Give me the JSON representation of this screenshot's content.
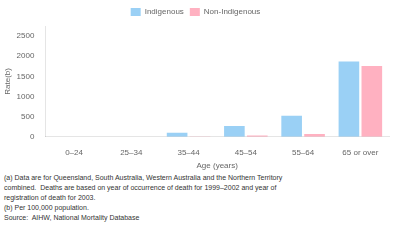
{
  "chart_data": {
    "type": "bar",
    "categories": [
      "0–24",
      "25–34",
      "35–44",
      "45–54",
      "55–64",
      "65 or over"
    ],
    "series": [
      {
        "name": "Indigenous",
        "values": [
          0,
          0,
          100,
          270,
          520,
          1870
        ]
      },
      {
        "name": "Non-Indigenous",
        "values": [
          0,
          0,
          5,
          30,
          70,
          1760
        ]
      }
    ],
    "xlabel": "Age (years)",
    "ylabel": "Rate(b)",
    "ylim": [
      0,
      2750
    ],
    "yticks": [
      0,
      500,
      1000,
      1500,
      2000,
      2500
    ],
    "grid": false,
    "legend": "upper center",
    "annotations": [
      "(a) Data are for Queensland, South Australia, Western Australia and the Northern Territory",
      "combined.  Deaths are based on year of occurrence of death for 1999–2002 and year of",
      "registration of death for 2003.",
      "(b) Per 100,000 population.",
      "Source:  AIHW, National Mortality Database"
    ]
  }
}
